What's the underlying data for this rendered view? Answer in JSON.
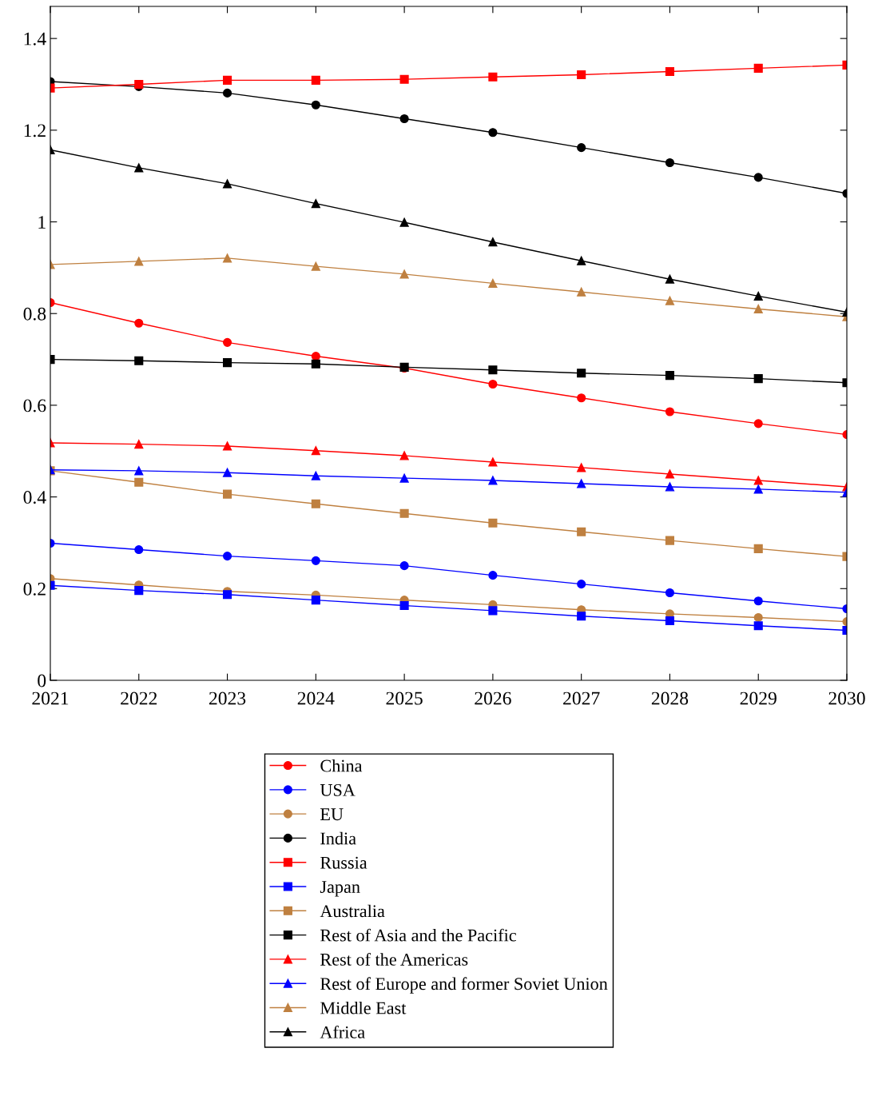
{
  "chart_data": {
    "type": "line",
    "x": [
      2021,
      2022,
      2023,
      2024,
      2025,
      2026,
      2027,
      2028,
      2029,
      2030
    ],
    "xlim": [
      2021,
      2030
    ],
    "xticks": [
      2021,
      2022,
      2023,
      2024,
      2025,
      2026,
      2027,
      2028,
      2029,
      2030
    ],
    "ylim": [
      0,
      1.47
    ],
    "yticks": [
      0,
      0.2,
      0.4,
      0.6,
      0.8,
      1,
      1.2,
      1.4
    ],
    "grid": false,
    "legend": "bottom",
    "line_style": "solid",
    "series": [
      {
        "name": "China",
        "color": "#ff0000",
        "marker": "circle",
        "values": [
          0.824,
          0.779,
          0.737,
          0.707,
          0.681,
          0.646,
          0.616,
          0.586,
          0.56,
          0.536
        ]
      },
      {
        "name": "USA",
        "color": "#0000ff",
        "marker": "circle",
        "values": [
          0.299,
          0.285,
          0.271,
          0.261,
          0.25,
          0.229,
          0.21,
          0.191,
          0.173,
          0.156
        ]
      },
      {
        "name": "EU",
        "color": "#bf8040",
        "marker": "circle",
        "values": [
          0.222,
          0.208,
          0.194,
          0.186,
          0.175,
          0.165,
          0.154,
          0.145,
          0.137,
          0.128
        ]
      },
      {
        "name": "India",
        "color": "#000000",
        "marker": "circle",
        "values": [
          1.306,
          1.295,
          1.281,
          1.255,
          1.225,
          1.195,
          1.162,
          1.129,
          1.097,
          1.062
        ]
      },
      {
        "name": "Russia",
        "color": "#ff0000",
        "marker": "square",
        "values": [
          1.292,
          1.3,
          1.309,
          1.309,
          1.311,
          1.316,
          1.321,
          1.328,
          1.335,
          1.342
        ]
      },
      {
        "name": "Japan",
        "color": "#0000ff",
        "marker": "square",
        "values": [
          0.207,
          0.196,
          0.187,
          0.175,
          0.163,
          0.152,
          0.14,
          0.13,
          0.119,
          0.109
        ]
      },
      {
        "name": "Australia",
        "color": "#bf8040",
        "marker": "square",
        "values": [
          0.457,
          0.432,
          0.406,
          0.385,
          0.364,
          0.343,
          0.324,
          0.305,
          0.287,
          0.27
        ]
      },
      {
        "name": "Rest of Asia and the Pacific",
        "color": "#000000",
        "marker": "square",
        "values": [
          0.7,
          0.697,
          0.693,
          0.69,
          0.683,
          0.677,
          0.67,
          0.665,
          0.658,
          0.649
        ]
      },
      {
        "name": "Rest of the Americas",
        "color": "#ff0000",
        "marker": "triangle",
        "values": [
          0.518,
          0.515,
          0.511,
          0.501,
          0.49,
          0.476,
          0.464,
          0.45,
          0.436,
          0.422
        ]
      },
      {
        "name": "Rest of Europe and former Soviet Union",
        "color": "#0000ff",
        "marker": "triangle",
        "values": [
          0.459,
          0.457,
          0.453,
          0.446,
          0.441,
          0.436,
          0.429,
          0.422,
          0.417,
          0.41
        ]
      },
      {
        "name": "Middle East",
        "color": "#bf8040",
        "marker": "triangle",
        "values": [
          0.907,
          0.914,
          0.921,
          0.903,
          0.886,
          0.866,
          0.847,
          0.828,
          0.81,
          0.793
        ]
      },
      {
        "name": "Africa",
        "color": "#000000",
        "marker": "triangle",
        "values": [
          1.157,
          1.118,
          1.083,
          1.04,
          0.999,
          0.956,
          0.915,
          0.875,
          0.838,
          0.803
        ]
      }
    ]
  }
}
